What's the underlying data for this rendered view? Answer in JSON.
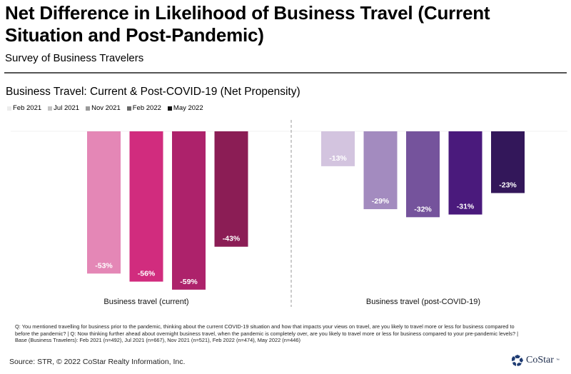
{
  "header": {
    "title": "Net Difference in Likelihood of Business Travel (Current Situation and Post-Pandemic)",
    "subtitle": "Survey of Business Travelers"
  },
  "chart_data": {
    "type": "bar",
    "title": "Business Travel: Current & Post-COVID-19 (Net Propensity)",
    "xlabel": "",
    "ylabel": "",
    "ylim": [
      -60,
      0
    ],
    "grid": false,
    "legend_position": "top-left",
    "categories": [
      "Business travel (current)",
      "Business travel (post-COVID-19)"
    ],
    "series": [
      {
        "name": "Feb 2021",
        "values": [
          null,
          -13
        ],
        "labels": [
          "",
          "-13%"
        ],
        "legend_color": "#ececec",
        "colors": [
          "#e487b6",
          "#d3c4df"
        ]
      },
      {
        "name": "Jul 2021",
        "values": [
          -53,
          -29
        ],
        "labels": [
          "-53%",
          "-29%"
        ],
        "legend_color": "#c4c4c4",
        "colors": [
          "#e487b6",
          "#a38bbf"
        ]
      },
      {
        "name": "Nov 2021",
        "values": [
          -56,
          -32
        ],
        "labels": [
          "-56%",
          "-32%"
        ],
        "legend_color": "#9a9a9a",
        "colors": [
          "#d12c7e",
          "#75539c"
        ]
      },
      {
        "name": "Feb 2022",
        "values": [
          -59,
          -31
        ],
        "labels": [
          "-59%",
          "-31%"
        ],
        "legend_color": "#6a6a6a",
        "colors": [
          "#ad226b",
          "#4a1a7c"
        ]
      },
      {
        "name": "May 2022",
        "values": [
          -43,
          -23
        ],
        "labels": [
          "-43%",
          "-23%"
        ],
        "legend_color": "#111111",
        "colors": [
          "#8b1d55",
          "#33175a"
        ]
      }
    ]
  },
  "footnote": "Q: You mentioned travelling for business prior to the pandemic, thinking about the current COVID-19 situation and how that impacts your views on travel, are you likely to travel more or less for business compared to before the pandemic? | Q: Now thinking further ahead about overnight business travel, when the pandemic is completely over, are you likely to travel more or less for business compared to your pre-pandemic levels? | Base (Business Travelers): Feb 2021 (n=492), Jul 2021 (n=667), Nov 2021 (n=521), Feb 2022 (n=474), May 2022 (n=446)",
  "source": "Source: STR, © 2022  CoStar Realty Information, Inc.",
  "logo": {
    "text": "CoStar",
    "tm": "™",
    "icon": "costar-logo-icon"
  }
}
